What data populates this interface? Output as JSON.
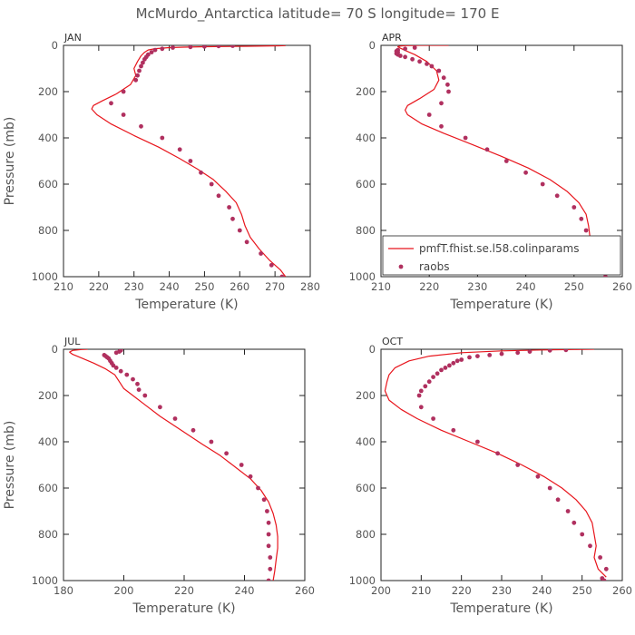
{
  "figure_title": "McMurdo_Antarctica  latitude= 70 S longitude= 170 E",
  "colors": {
    "model": "#e8151c",
    "obs": "#b0305f",
    "axis": "#222222",
    "text": "#555555"
  },
  "legend": {
    "model": "pmfT.fhist.se.l58.colinparams",
    "obs": "raobs"
  },
  "chart_data": [
    {
      "type": "line",
      "month": "JAN",
      "xlabel": "Temperature (K)",
      "ylabel": "Pressure (mb)",
      "xlim": [
        210,
        280
      ],
      "xticks": [
        210,
        220,
        230,
        240,
        250,
        260,
        270,
        280
      ],
      "ylim": [
        1000,
        0
      ],
      "yticks": [
        0,
        200,
        400,
        600,
        800,
        1000
      ],
      "series": [
        {
          "kind": "line",
          "points": [
            [
              273,
              1
            ],
            [
              271,
              2
            ],
            [
              262,
              4
            ],
            [
              250,
              6
            ],
            [
              244,
              8
            ],
            [
              240,
              10
            ],
            [
              236,
              14
            ],
            [
              234,
              20
            ],
            [
              233,
              30
            ],
            [
              232,
              45
            ],
            [
              231,
              70
            ],
            [
              230,
              100
            ],
            [
              230.5,
              130
            ],
            [
              229,
              170
            ],
            [
              225,
              210
            ],
            [
              221,
              240
            ],
            [
              218.5,
              260
            ],
            [
              218,
              275
            ],
            [
              219.5,
              300
            ],
            [
              223.5,
              340
            ],
            [
              230,
              390
            ],
            [
              237,
              440
            ],
            [
              243,
              490
            ],
            [
              248,
              535
            ],
            [
              252.5,
              580
            ],
            [
              256,
              630
            ],
            [
              259,
              680
            ],
            [
              260.5,
              730
            ],
            [
              261.5,
              780
            ],
            [
              263,
              830
            ],
            [
              265.5,
              880
            ],
            [
              268.5,
              930
            ],
            [
              271.5,
              970
            ],
            [
              273,
              1000
            ]
          ]
        },
        {
          "kind": "points",
          "points": [
            [
              272,
              1000
            ],
            [
              269,
              950
            ],
            [
              266,
              900
            ],
            [
              262,
              850
            ],
            [
              260,
              800
            ],
            [
              258,
              750
            ],
            [
              257,
              700
            ],
            [
              254,
              650
            ],
            [
              252,
              600
            ],
            [
              249,
              550
            ],
            [
              246,
              500
            ],
            [
              243,
              450
            ],
            [
              238,
              400
            ],
            [
              232,
              350
            ],
            [
              227,
              300
            ],
            [
              223.5,
              250
            ],
            [
              227,
              200
            ],
            [
              230.5,
              150
            ],
            [
              231,
              130
            ],
            [
              231.5,
              110
            ],
            [
              232,
              90
            ],
            [
              232.5,
              75
            ],
            [
              233,
              60
            ],
            [
              233.5,
              50
            ],
            [
              234,
              40
            ],
            [
              235,
              30
            ],
            [
              236,
              20
            ],
            [
              238,
              15
            ],
            [
              241,
              10
            ],
            [
              246,
              7
            ],
            [
              250,
              5
            ],
            [
              254,
              3
            ],
            [
              258,
              2
            ]
          ]
        }
      ]
    },
    {
      "type": "line",
      "month": "APR",
      "xlabel": "Temperature (K)",
      "ylabel": "",
      "xlim": [
        210,
        260
      ],
      "xticks": [
        210,
        220,
        230,
        240,
        250,
        260
      ],
      "ylim": [
        1000,
        0
      ],
      "yticks": [
        0,
        200,
        400,
        600,
        800,
        1000
      ],
      "series": [
        {
          "kind": "line",
          "points": [
            [
              224,
              0
            ],
            [
              218,
              0
            ],
            [
              215,
              1
            ],
            [
              214,
              3
            ],
            [
              213.5,
              6
            ],
            [
              214,
              12
            ],
            [
              215,
              22
            ],
            [
              217,
              40
            ],
            [
              219.5,
              70
            ],
            [
              221.5,
              110
            ],
            [
              222,
              150
            ],
            [
              221,
              190
            ],
            [
              218,
              230
            ],
            [
              215.5,
              260
            ],
            [
              215,
              280
            ],
            [
              215.5,
              300
            ],
            [
              218.5,
              340
            ],
            [
              223,
              380
            ],
            [
              229,
              430
            ],
            [
              235,
              480
            ],
            [
              240.5,
              530
            ],
            [
              245,
              580
            ],
            [
              248.5,
              630
            ],
            [
              251,
              680
            ],
            [
              252.5,
              730
            ],
            [
              253,
              780
            ],
            [
              253.3,
              830
            ],
            [
              253.5,
              880
            ],
            [
              255.5,
              930
            ],
            [
              258.5,
              975
            ]
          ]
        },
        {
          "kind": "points",
          "points": [
            [
              256.5,
              1000
            ],
            [
              256,
              950
            ],
            [
              253.5,
              900
            ],
            [
              253,
              850
            ],
            [
              252.5,
              800
            ],
            [
              251.5,
              750
            ],
            [
              250,
              700
            ],
            [
              246.5,
              650
            ],
            [
              243.5,
              600
            ],
            [
              240,
              550
            ],
            [
              236,
              500
            ],
            [
              232,
              450
            ],
            [
              227.5,
              400
            ],
            [
              222.5,
              350
            ],
            [
              220,
              300
            ],
            [
              222.5,
              250
            ],
            [
              224,
              200
            ],
            [
              223.8,
              170
            ],
            [
              223,
              140
            ],
            [
              222,
              110
            ],
            [
              220.5,
              90
            ],
            [
              219.5,
              80
            ],
            [
              218,
              70
            ],
            [
              216.5,
              60
            ],
            [
              215,
              50
            ],
            [
              214,
              45
            ],
            [
              213.5,
              40
            ],
            [
              213.2,
              35
            ],
            [
              213.5,
              30
            ],
            [
              213.2,
              25
            ],
            [
              213.5,
              20
            ],
            [
              215,
              15
            ],
            [
              217,
              10
            ]
          ]
        }
      ]
    },
    {
      "type": "line",
      "month": "JUL",
      "xlabel": "Temperature (K)",
      "ylabel": "Pressure (mb)",
      "xlim": [
        180,
        260
      ],
      "xticks": [
        180,
        200,
        220,
        240,
        260
      ],
      "ylim": [
        1000,
        0
      ],
      "yticks": [
        0,
        200,
        400,
        600,
        800,
        1000
      ],
      "series": [
        {
          "kind": "line",
          "points": [
            [
              188,
              0
            ],
            [
              186,
              1
            ],
            [
              183,
              5
            ],
            [
              182,
              12
            ],
            [
              183,
              22
            ],
            [
              186,
              38
            ],
            [
              190,
              60
            ],
            [
              194,
              85
            ],
            [
              197,
              110
            ],
            [
              198.5,
              140
            ],
            [
              200,
              170
            ],
            [
              203,
              200
            ],
            [
              207,
              240
            ],
            [
              212,
              290
            ],
            [
              219,
              350
            ],
            [
              226,
              410
            ],
            [
              232,
              460
            ],
            [
              237,
              510
            ],
            [
              242,
              560
            ],
            [
              245.5,
              610
            ],
            [
              248,
              660
            ],
            [
              249.5,
              710
            ],
            [
              250.5,
              760
            ],
            [
              251,
              810
            ],
            [
              251,
              860
            ],
            [
              250.5,
              910
            ],
            [
              250,
              960
            ],
            [
              249.5,
              1000
            ]
          ]
        },
        {
          "kind": "points",
          "points": [
            [
              248,
              1000
            ],
            [
              248.5,
              950
            ],
            [
              248.5,
              900
            ],
            [
              248,
              850
            ],
            [
              248,
              800
            ],
            [
              248,
              750
            ],
            [
              247.5,
              700
            ],
            [
              246.5,
              650
            ],
            [
              244.5,
              600
            ],
            [
              242,
              550
            ],
            [
              239,
              500
            ],
            [
              234,
              450
            ],
            [
              229,
              400
            ],
            [
              223,
              350
            ],
            [
              217,
              300
            ],
            [
              212,
              250
            ],
            [
              207,
              200
            ],
            [
              205,
              175
            ],
            [
              204.5,
              150
            ],
            [
              203,
              130
            ],
            [
              201,
              110
            ],
            [
              199,
              95
            ],
            [
              197.5,
              80
            ],
            [
              196.5,
              70
            ],
            [
              196,
              60
            ],
            [
              195.5,
              50
            ],
            [
              195,
              40
            ],
            [
              194.5,
              35
            ],
            [
              194,
              30
            ],
            [
              193.5,
              25
            ],
            [
              197.5,
              15
            ],
            [
              198.5,
              10
            ],
            [
              199,
              5
            ]
          ]
        }
      ]
    },
    {
      "type": "line",
      "month": "OCT",
      "xlabel": "Temperature (K)",
      "ylabel": "",
      "xlim": [
        200,
        260
      ],
      "xticks": [
        200,
        210,
        220,
        230,
        240,
        250,
        260
      ],
      "ylim": [
        1000,
        0
      ],
      "yticks": [
        0,
        200,
        400,
        600,
        800,
        1000
      ],
      "series": [
        {
          "kind": "line",
          "points": [
            [
              253,
              0
            ],
            [
              248,
              1
            ],
            [
              240,
              3
            ],
            [
              230,
              7
            ],
            [
              220,
              15
            ],
            [
              212,
              30
            ],
            [
              207,
              50
            ],
            [
              203.5,
              80
            ],
            [
              202,
              110
            ],
            [
              201.5,
              140
            ],
            [
              201,
              180
            ],
            [
              202,
              220
            ],
            [
              205,
              260
            ],
            [
              209,
              300
            ],
            [
              215,
              350
            ],
            [
              222,
              400
            ],
            [
              229,
              450
            ],
            [
              235,
              500
            ],
            [
              240.5,
              550
            ],
            [
              245,
              600
            ],
            [
              248.5,
              650
            ],
            [
              251,
              700
            ],
            [
              252.5,
              750
            ],
            [
              253,
              800
            ],
            [
              253.5,
              850
            ],
            [
              253,
              900
            ],
            [
              254,
              950
            ],
            [
              256,
              985
            ]
          ]
        },
        {
          "kind": "points",
          "points": [
            [
              255.5,
              1000
            ],
            [
              255,
              990
            ],
            [
              256,
              950
            ],
            [
              254.5,
              900
            ],
            [
              252,
              850
            ],
            [
              250,
              800
            ],
            [
              248,
              750
            ],
            [
              246.5,
              700
            ],
            [
              244,
              650
            ],
            [
              242,
              600
            ],
            [
              239,
              550
            ],
            [
              234,
              500
            ],
            [
              229,
              450
            ],
            [
              224,
              400
            ],
            [
              218,
              350
            ],
            [
              213,
              300
            ],
            [
              210,
              250
            ],
            [
              209.5,
              200
            ],
            [
              210,
              180
            ],
            [
              211,
              160
            ],
            [
              212,
              140
            ],
            [
              213,
              120
            ],
            [
              214,
              105
            ],
            [
              215,
              90
            ],
            [
              216,
              80
            ],
            [
              217,
              70
            ],
            [
              218,
              60
            ],
            [
              219,
              50
            ],
            [
              220,
              45
            ],
            [
              222,
              35
            ],
            [
              224,
              30
            ],
            [
              227,
              25
            ],
            [
              230,
              20
            ],
            [
              234,
              15
            ],
            [
              237,
              10
            ],
            [
              242,
              5
            ],
            [
              246,
              3
            ]
          ]
        }
      ]
    }
  ]
}
